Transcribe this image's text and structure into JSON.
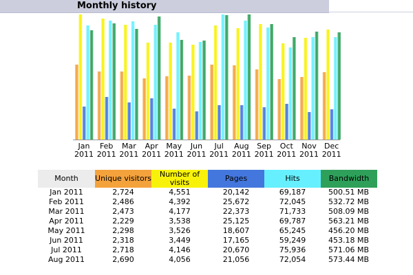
{
  "header": {
    "title": "Monthly history"
  },
  "colors": {
    "unique_visitors": "#f4a23c",
    "visits": "#f8f20a",
    "pages": "#4477dd",
    "hits": "#66f0ff",
    "bandwidth": "#2ea05a"
  },
  "table": {
    "headers": [
      "Month",
      "Unique visitors",
      "Number of visits",
      "Pages",
      "Hits",
      "Bandwidth"
    ],
    "rows": [
      [
        "Jan 2011",
        "2,724",
        "4,551",
        "20,142",
        "69,187",
        "500.51 MB"
      ],
      [
        "Feb 2011",
        "2,486",
        "4,392",
        "25,672",
        "72,045",
        "532.72 MB"
      ],
      [
        "Mar 2011",
        "2,473",
        "4,177",
        "22,373",
        "71,733",
        "508.09 MB"
      ],
      [
        "Apr 2011",
        "2,229",
        "3,538",
        "25,125",
        "69,787",
        "563.21 MB"
      ],
      [
        "May 2011",
        "2,298",
        "3,526",
        "18,607",
        "65,245",
        "456.20 MB"
      ],
      [
        "Jun 2011",
        "2,318",
        "3,449",
        "17,165",
        "59,249",
        "453.18 MB"
      ],
      [
        "Jul 2011",
        "2,718",
        "4,146",
        "20,670",
        "75,936",
        "571.06 MB"
      ],
      [
        "Aug 2011",
        "2,690",
        "4,056",
        "21,056",
        "72,054",
        "573.44 MB"
      ]
    ]
  },
  "chart_data": {
    "type": "bar",
    "categories": [
      "Jan",
      "Feb",
      "Mar",
      "Apr",
      "May",
      "Jun",
      "Jul",
      "Aug",
      "Sep",
      "Oct",
      "Nov",
      "Dec"
    ],
    "category_years": [
      "2011",
      "2011",
      "2011",
      "2011",
      "2011",
      "2011",
      "2011",
      "2011",
      "2011",
      "2011",
      "2011",
      "2011"
    ],
    "series": [
      {
        "name": "Unique visitors",
        "key": "unique_visitors",
        "values": [
          2724,
          2486,
          2473,
          2229,
          2298,
          2318,
          2718,
          2690,
          2550,
          2200,
          2280,
          2450
        ]
      },
      {
        "name": "Number of visits",
        "key": "visits",
        "values": [
          4551,
          4392,
          4177,
          3538,
          3526,
          3449,
          4146,
          4056,
          4200,
          3500,
          3700,
          4000
        ]
      },
      {
        "name": "Pages",
        "key": "pages",
        "values": [
          20142,
          25672,
          22373,
          25125,
          18607,
          17165,
          20670,
          21056,
          19800,
          21500,
          16600,
          18400
        ]
      },
      {
        "name": "Hits",
        "key": "hits",
        "values": [
          69187,
          72045,
          71733,
          69787,
          65245,
          59249,
          75936,
          72054,
          68000,
          56000,
          62000,
          62000
        ]
      },
      {
        "name": "Bandwidth",
        "key": "bandwidth",
        "values": [
          500.51,
          532.72,
          508.09,
          563.21,
          456.2,
          453.18,
          571.06,
          573.44,
          530,
          470,
          495,
          490
        ]
      }
    ]
  }
}
